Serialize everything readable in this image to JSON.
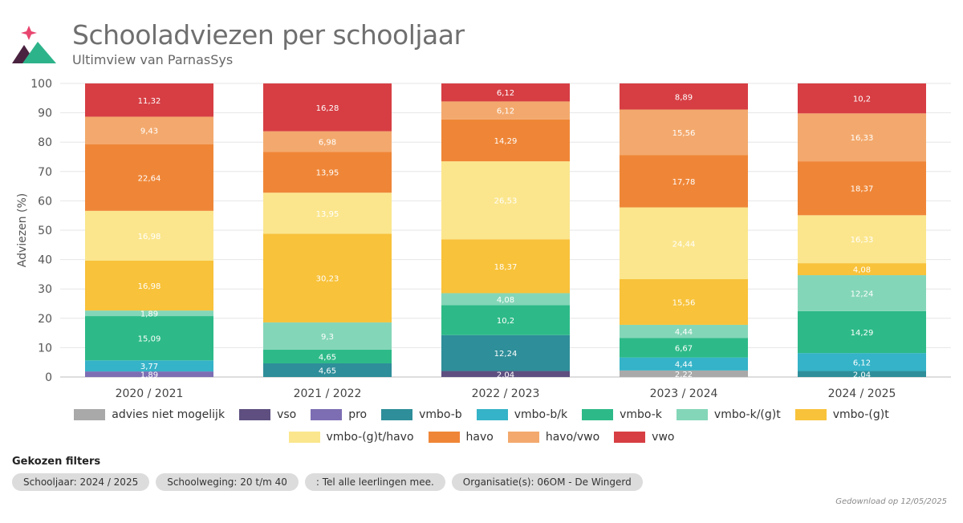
{
  "header": {
    "title": "Schooladviezen per schooljaar",
    "subtitle": "Ultimview van ParnasSys"
  },
  "colors": {
    "advies niet mogelijk": "#a9a9a9",
    "vso": "#5e4f80",
    "pro": "#7d6eb3",
    "vmbo-b": "#2e8e99",
    "vmbo-b/k": "#35b3c8",
    "vmbo-k": "#2dba88",
    "vmbo-k/(g)t": "#84d6b8",
    "vmbo-(g)t": "#f8c23a",
    "vmbo-(g)t/havo": "#fbe68d",
    "havo": "#ef8637",
    "havo/vwo": "#f3a96d",
    "vwo": "#d63e43"
  },
  "chart_data": {
    "type": "bar",
    "stacked": true,
    "ylabel": "Adviezen (%)",
    "ylim": [
      0,
      100
    ],
    "yticks": [
      0,
      10,
      20,
      30,
      40,
      50,
      60,
      70,
      80,
      90,
      100
    ],
    "grid": true,
    "legend_position": "bottom",
    "categories": [
      "2020 / 2021",
      "2021 / 2022",
      "2022 / 2023",
      "2023 / 2024",
      "2024 / 2025"
    ],
    "series": [
      {
        "name": "advies niet mogelijk",
        "values": [
          0,
          0,
          0,
          2.22,
          0
        ],
        "labels": [
          "",
          "",
          "",
          "2,22",
          ""
        ]
      },
      {
        "name": "vso",
        "values": [
          0,
          0,
          2.04,
          0,
          0
        ],
        "labels": [
          "",
          "",
          "2,04",
          "",
          ""
        ]
      },
      {
        "name": "pro",
        "values": [
          1.89,
          0,
          0,
          0,
          0
        ],
        "labels": [
          "1,89",
          "",
          "",
          "",
          ""
        ]
      },
      {
        "name": "vmbo-b",
        "values": [
          0,
          4.65,
          12.24,
          0,
          2.04
        ],
        "labels": [
          "",
          "4,65",
          "12,24",
          "",
          "2,04"
        ]
      },
      {
        "name": "vmbo-b/k",
        "values": [
          3.77,
          0,
          0,
          4.44,
          6.12
        ],
        "labels": [
          "3,77",
          "",
          "",
          "4,44",
          "6,12"
        ]
      },
      {
        "name": "vmbo-k",
        "values": [
          15.09,
          4.65,
          10.2,
          6.67,
          14.29
        ],
        "labels": [
          "15,09",
          "4,65",
          "10,2",
          "6,67",
          "14,29"
        ]
      },
      {
        "name": "vmbo-k/(g)t",
        "values": [
          1.89,
          9.3,
          4.08,
          4.44,
          12.24
        ],
        "labels": [
          "1,89",
          "9,3",
          "4,08",
          "4,44",
          "12,24"
        ]
      },
      {
        "name": "vmbo-(g)t",
        "values": [
          16.98,
          30.23,
          18.37,
          15.56,
          4.08
        ],
        "labels": [
          "16,98",
          "30,23",
          "18,37",
          "15,56",
          "4,08"
        ]
      },
      {
        "name": "vmbo-(g)t/havo",
        "values": [
          16.98,
          13.95,
          26.53,
          24.44,
          16.33
        ],
        "labels": [
          "16,98",
          "13,95",
          "26,53",
          "24,44",
          "16,33"
        ]
      },
      {
        "name": "havo",
        "values": [
          22.64,
          13.95,
          14.29,
          17.78,
          18.37
        ],
        "labels": [
          "22,64",
          "13,95",
          "14,29",
          "17,78",
          "18,37"
        ]
      },
      {
        "name": "havo/vwo",
        "values": [
          9.43,
          6.98,
          6.12,
          15.56,
          16.33
        ],
        "labels": [
          "9,43",
          "6,98",
          "6,12",
          "15,56",
          "16,33"
        ]
      },
      {
        "name": "vwo",
        "values": [
          11.32,
          16.28,
          6.12,
          8.89,
          10.2
        ],
        "labels": [
          "11,32",
          "16,28",
          "6,12",
          "8,89",
          "10,2"
        ]
      }
    ]
  },
  "filters": {
    "title": "Gekozen filters",
    "chips": [
      "Schooljaar: 2024 / 2025",
      "Schoolweging: 20 t/m 40",
      ": Tel alle leerlingen mee.",
      "Organisatie(s): 06OM - De Wingerd"
    ]
  },
  "footer": {
    "download": "Gedownload op 12/05/2025"
  }
}
